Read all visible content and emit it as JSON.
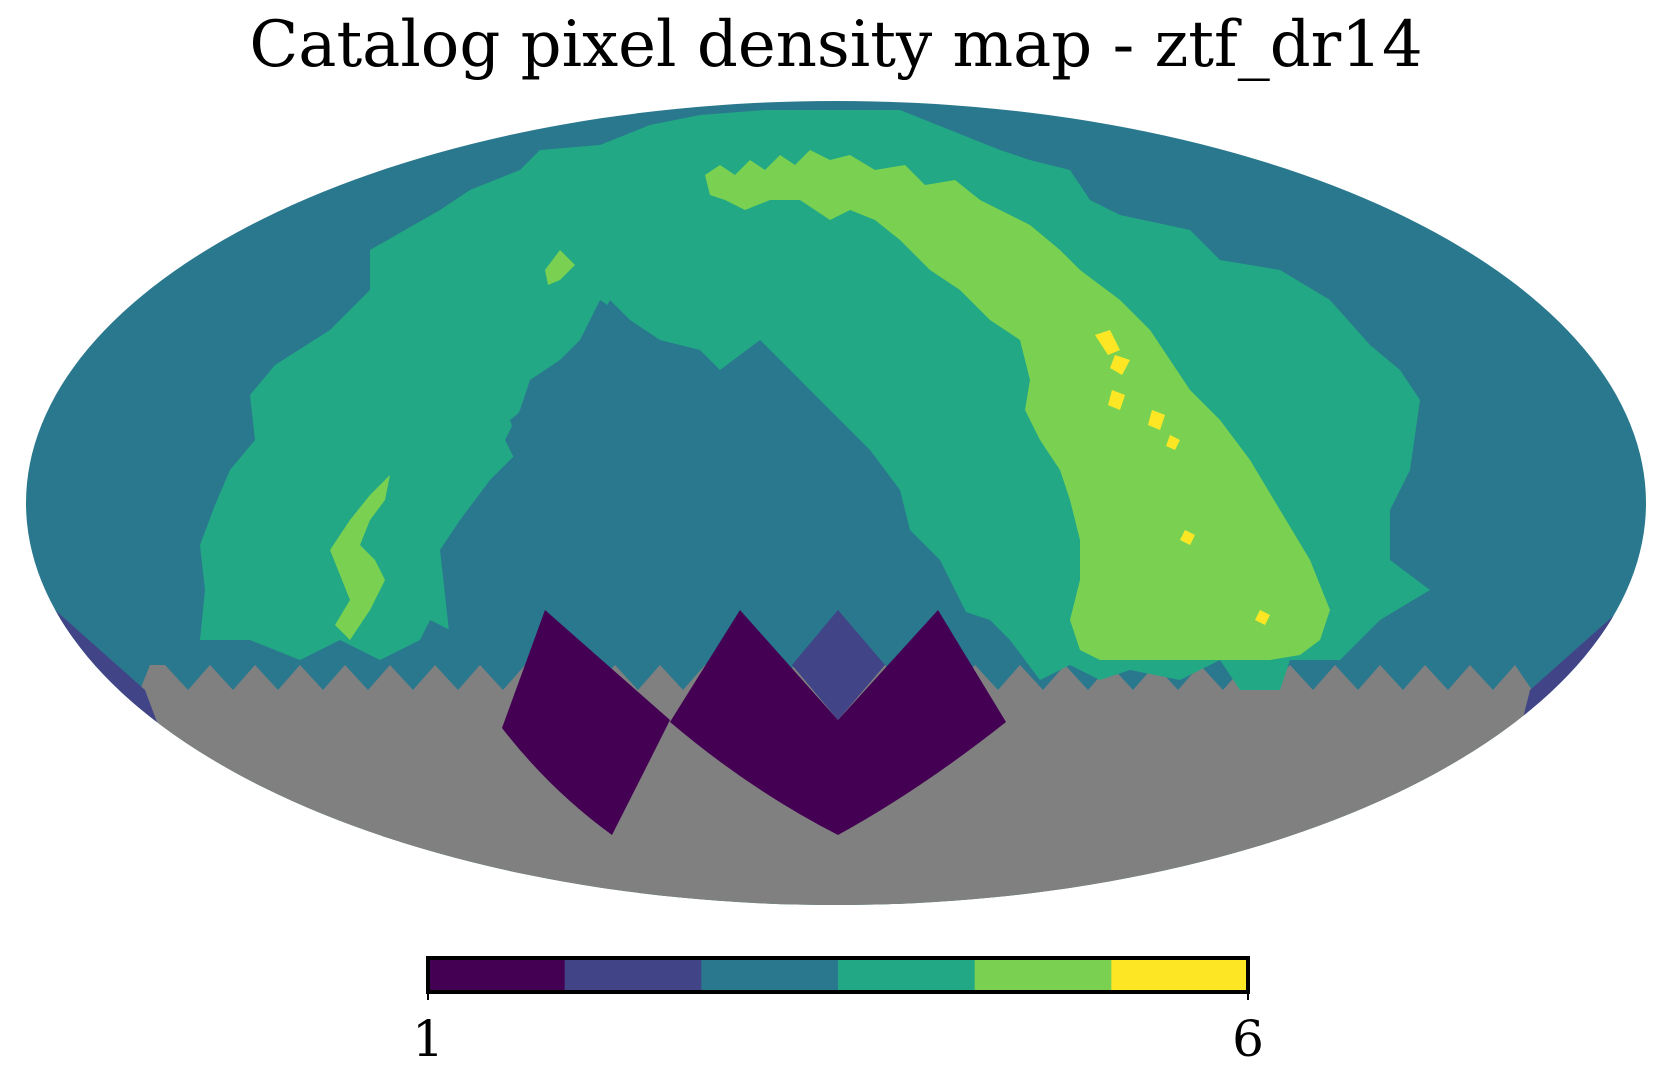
{
  "title": "Catalog pixel density map - ztf_dr14",
  "colors": {
    "level_1": "#440154",
    "level_2": "#414487",
    "level_3": "#2a788e",
    "level_4": "#22a884",
    "level_5": "#7ad151",
    "level_6": "#fde725",
    "no_data": "#808080",
    "background": "#ffffff"
  },
  "colorbar": {
    "min_label": "1",
    "max_label": "6",
    "levels": [
      1,
      2,
      3,
      4,
      5,
      6
    ],
    "colors": [
      "#440154",
      "#414487",
      "#2a788e",
      "#22a884",
      "#7ad151",
      "#fde725"
    ]
  },
  "map": {
    "projection": "mollweide",
    "coverage_note_levels": {
      "unobserved": "no_data"
    }
  }
}
